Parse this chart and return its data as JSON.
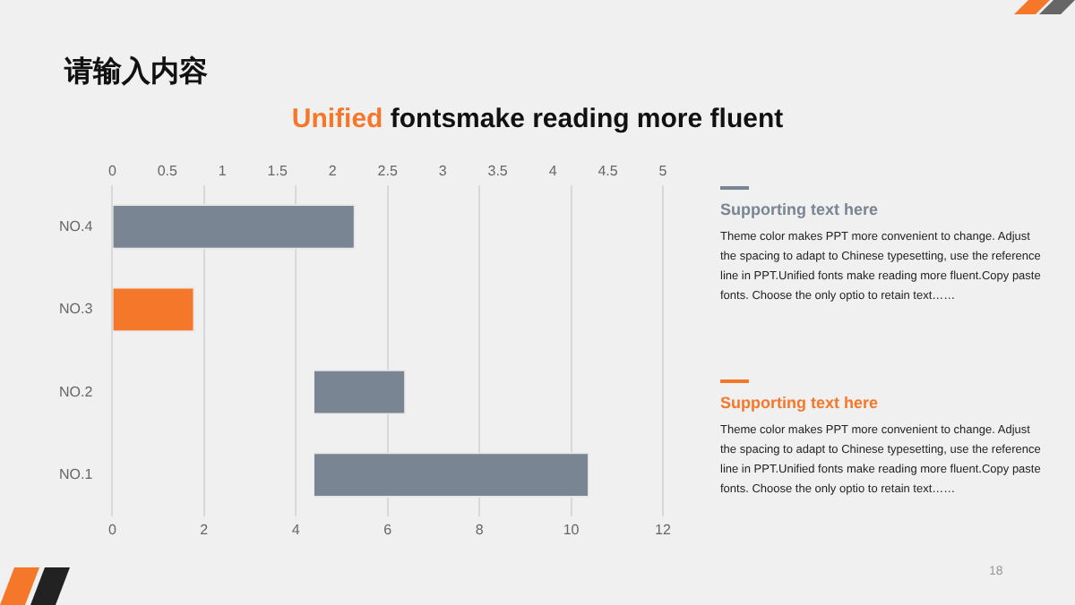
{
  "chart_data": {
    "type": "bar",
    "orientation": "horizontal",
    "title": "请输入内容",
    "subtitle": "Unified fontsmake reading more fluent",
    "categories": [
      "NO.4",
      "NO.3",
      "NO.2",
      "NO.1"
    ],
    "base": [
      0,
      0,
      4.4,
      4.4
    ],
    "values": [
      5.3,
      1.8,
      2,
      6
    ],
    "colors": [
      "#7a8594",
      "#f5782a",
      "#7a8594",
      "#7a8594"
    ],
    "xlim": [
      0,
      12
    ],
    "xticks": [
      0,
      2,
      4,
      6,
      8,
      10,
      12
    ],
    "x2lim": [
      0,
      5
    ],
    "x2ticks": [
      0,
      0.5,
      1,
      1.5,
      2,
      2.5,
      3,
      3.5,
      4,
      4.5,
      5
    ],
    "grid": "x",
    "legend": false,
    "annotations": [
      "Supporting text here",
      "Theme  color makes PPT more convenient  to change. Adjust the spacing to adapt to Chinese typesetting, use the reference line in PPT.Unified fonts make reading more fluent.Copy paste fonts. Choose the only optio to retain text……",
      "Supporting text here",
      "Theme  color makes PPT more convenient  to change. Adjust the spacing to adapt to Chinese typesetting, use the reference line in PPT.Unified fonts make reading more fluent.Copy paste fonts. Choose the only optio to retain text……",
      "18"
    ]
  }
}
